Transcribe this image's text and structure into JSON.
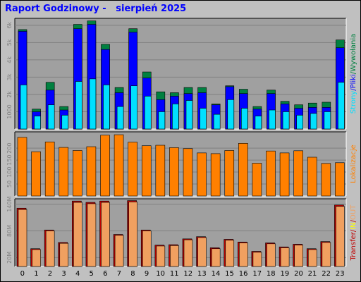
{
  "title": "Raport Godzinowy -   sierpień 2025",
  "colors": {
    "background": "#c0c0c0",
    "panel": "#a0a0a0",
    "grid": "#808080",
    "hits": "#008040",
    "files": "#0000ff",
    "pages": "#00e0ff",
    "sites": "#ff8000",
    "kbytes": "#c00000",
    "in": "#ffff00",
    "out": "#f0a060"
  },
  "chart_data": [
    {
      "type": "bar",
      "panel": "hits",
      "categories": [
        "0",
        "1",
        "2",
        "3",
        "4",
        "5",
        "6",
        "7",
        "8",
        "9",
        "10",
        "11",
        "12",
        "13",
        "14",
        "15",
        "16",
        "17",
        "18",
        "19",
        "20",
        "21",
        "22",
        "23"
      ],
      "ylim": [
        0,
        6400
      ],
      "yticks": [
        "1000",
        "2k",
        "3k",
        "4k",
        "5k",
        "6k"
      ],
      "ytick_values": [
        1000,
        2000,
        3000,
        4000,
        5000,
        6000
      ],
      "legend": [
        "Strony",
        "/",
        "Pliki",
        "/",
        "Wywołania"
      ],
      "series": [
        {
          "name": "Wywołania",
          "values": [
            5750,
            1150,
            2700,
            1300,
            6050,
            6250,
            4900,
            2400,
            5800,
            3300,
            2150,
            2100,
            2400,
            2400,
            1450,
            2500,
            2300,
            1300,
            2250,
            1600,
            1400,
            1500,
            1550,
            5150
          ]
        },
        {
          "name": "Pliki",
          "values": [
            5650,
            1000,
            2250,
            1100,
            5800,
            6050,
            4600,
            2100,
            5600,
            2950,
            1700,
            1900,
            2050,
            2100,
            1400,
            2450,
            2050,
            1150,
            2050,
            1450,
            1200,
            1250,
            1250,
            4700
          ]
        },
        {
          "name": "Strony",
          "values": [
            2550,
            750,
            1400,
            800,
            2750,
            2900,
            2550,
            1300,
            2500,
            1900,
            1000,
            1450,
            1650,
            1200,
            850,
            1700,
            1200,
            750,
            1100,
            1000,
            800,
            900,
            1000,
            2700
          ]
        }
      ]
    },
    {
      "type": "bar",
      "panel": "sites",
      "categories": [
        "0",
        "1",
        "2",
        "3",
        "4",
        "5",
        "6",
        "7",
        "8",
        "9",
        "10",
        "11",
        "12",
        "13",
        "14",
        "15",
        "16",
        "17",
        "18",
        "19",
        "20",
        "21",
        "22",
        "23"
      ],
      "ylim": [
        0,
        268
      ],
      "yticks": [
        "50",
        "100",
        "150",
        "200"
      ],
      "ytick_values": [
        50,
        100,
        150,
        200
      ],
      "legend": [
        "Lokalizacje"
      ],
      "series": [
        {
          "name": "Lokalizacje",
          "values": [
            245,
            185,
            226,
            203,
            190,
            206,
            254,
            256,
            225,
            210,
            212,
            202,
            198,
            180,
            177,
            190,
            220,
            137,
            188,
            180,
            189,
            162,
            136,
            139
          ]
        }
      ]
    },
    {
      "type": "bar",
      "panel": "kbytes",
      "categories": [
        "0",
        "1",
        "2",
        "3",
        "4",
        "5",
        "6",
        "7",
        "8",
        "9",
        "10",
        "11",
        "12",
        "13",
        "14",
        "15",
        "16",
        "17",
        "18",
        "19",
        "20",
        "21",
        "22",
        "23"
      ],
      "ylim": [
        0,
        152
      ],
      "yticks": [
        "20M",
        "80M",
        "140M"
      ],
      "ytick_values": [
        20,
        80,
        140
      ],
      "legend": [
        "Transfer",
        "/",
        "IN",
        "/",
        "OUT"
      ],
      "series": [
        {
          "name": "Transfer",
          "values": [
            131,
            40,
            82,
            54,
            147,
            144,
            147,
            72,
            148,
            82,
            48,
            49,
            62,
            67,
            42,
            61,
            55,
            34,
            53,
            44,
            50,
            40,
            56,
            138
          ]
        },
        {
          "name": "OUT",
          "values": [
            128,
            38,
            80,
            52,
            144,
            141,
            144,
            70,
            145,
            80,
            46,
            47,
            60,
            65,
            40,
            59,
            53,
            32,
            51,
            42,
            48,
            38,
            54,
            135
          ]
        }
      ]
    }
  ]
}
